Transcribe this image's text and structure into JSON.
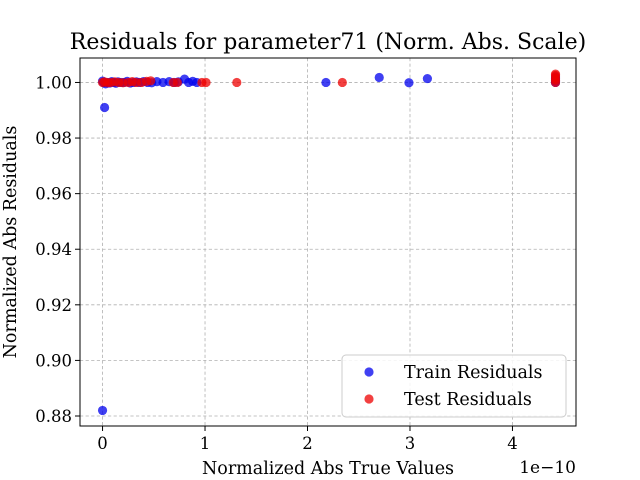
{
  "chart_data": {
    "type": "scatter",
    "title": "Residuals for parameter71 (Norm. Abs. Scale)",
    "xlabel": "Normalized Abs True Values",
    "ylabel": "Normalized Abs Residuals",
    "x_offset_label": "1e−10",
    "x_scale": 1e-10,
    "xlim": [
      -0.22,
      4.62
    ],
    "ylim": [
      0.8764,
      1.0088
    ],
    "xticks": [
      0,
      1,
      2,
      3,
      4
    ],
    "xtick_labels": [
      "0",
      "1",
      "2",
      "3",
      "4"
    ],
    "yticks": [
      0.88,
      0.9,
      0.92,
      0.94,
      0.96,
      0.98,
      1.0
    ],
    "ytick_labels": [
      "0.88",
      "0.90",
      "0.92",
      "0.94",
      "0.96",
      "0.98",
      "1.00"
    ],
    "grid": true,
    "legend_position": "bottom-right",
    "series": [
      {
        "name": "Train Residuals",
        "color": "#0000ee",
        "points": [
          [
            0.0,
            0.882
          ],
          [
            0.02,
            0.991
          ],
          [
            0.0,
            1.0005
          ],
          [
            0.01,
            1.0
          ],
          [
            0.03,
            0.9995
          ],
          [
            0.05,
            1.0
          ],
          [
            0.07,
            0.9998
          ],
          [
            0.09,
            1.0003
          ],
          [
            0.11,
            1.0
          ],
          [
            0.13,
            0.9997
          ],
          [
            0.15,
            1.0002
          ],
          [
            0.18,
            1.0
          ],
          [
            0.21,
            1.0
          ],
          [
            0.24,
            1.0004
          ],
          [
            0.27,
            0.9998
          ],
          [
            0.3,
            1.0
          ],
          [
            0.33,
            1.0002
          ],
          [
            0.36,
            1.0
          ],
          [
            0.4,
            1.0003
          ],
          [
            0.44,
            1.0
          ],
          [
            0.48,
            0.9999
          ],
          [
            0.53,
            1.0003
          ],
          [
            0.59,
            1.0
          ],
          [
            0.65,
            1.0003
          ],
          [
            0.7,
            1.0
          ],
          [
            0.74,
            1.0002
          ],
          [
            0.8,
            1.0012
          ],
          [
            0.84,
            1.0
          ],
          [
            0.88,
            1.0004
          ],
          [
            0.92,
            1.0
          ],
          [
            2.18,
            1.0
          ],
          [
            2.7,
            1.0018
          ],
          [
            2.99,
            0.9999
          ],
          [
            3.17,
            1.0014
          ],
          [
            4.42,
            1.0
          ],
          [
            4.42,
            1.0005
          ],
          [
            4.42,
            1.0013
          ],
          [
            4.42,
            1.002
          ]
        ]
      },
      {
        "name": "Test Residuals",
        "color": "#ee0000",
        "points": [
          [
            0.0,
            1.0
          ],
          [
            0.02,
            1.0002
          ],
          [
            0.05,
            0.9999
          ],
          [
            0.08,
            1.0
          ],
          [
            0.12,
            1.0002
          ],
          [
            0.16,
            1.0
          ],
          [
            0.2,
            0.9999
          ],
          [
            0.25,
            1.0
          ],
          [
            0.29,
            1.0003
          ],
          [
            0.33,
            1.0
          ],
          [
            0.38,
            1.0
          ],
          [
            0.43,
            1.0004
          ],
          [
            0.47,
            1.0006
          ],
          [
            0.69,
            1.0
          ],
          [
            0.73,
            1.0
          ],
          [
            0.97,
            1.0
          ],
          [
            1.01,
            1.0
          ],
          [
            1.31,
            1.0
          ],
          [
            2.34,
            1.0
          ],
          [
            4.42,
            1.0
          ],
          [
            4.42,
            1.0008
          ],
          [
            4.42,
            1.0016
          ],
          [
            4.42,
            1.0025
          ],
          [
            4.42,
            1.003
          ]
        ]
      }
    ]
  }
}
